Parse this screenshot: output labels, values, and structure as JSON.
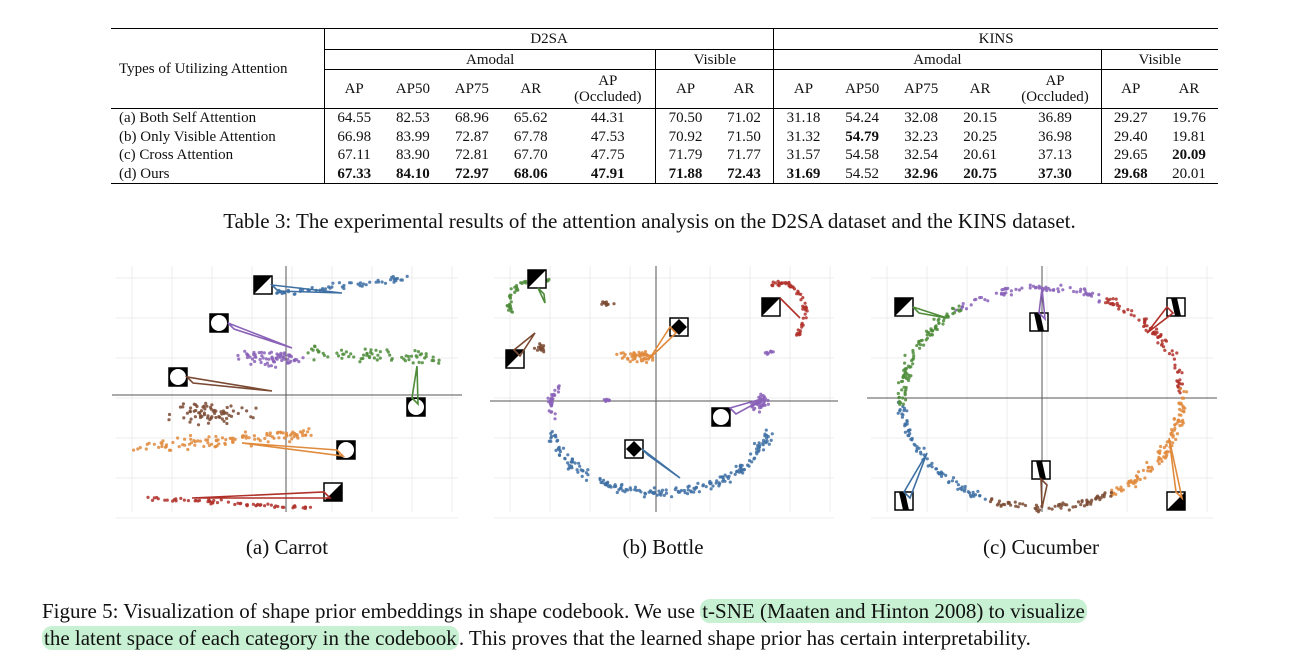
{
  "table": {
    "row_header": "Types of Utilizing Attention",
    "datasets": [
      "D2SA",
      "KINS"
    ],
    "groups": [
      "Amodal",
      "Visible",
      "Amodal",
      "Visible"
    ],
    "columns": [
      "AP",
      "AP50",
      "AP75",
      "AR",
      "AP",
      "(Occluded)",
      "AP",
      "AR",
      "AP",
      "AP50",
      "AP75",
      "AR",
      "AP",
      "(Occluded)",
      "AP",
      "AR"
    ],
    "rows": [
      {
        "label": "(a) Both Self Attention",
        "values": [
          "64.55",
          "82.53",
          "68.96",
          "65.62",
          "44.31",
          "70.50",
          "71.02",
          "31.18",
          "54.24",
          "32.08",
          "20.15",
          "36.89",
          "29.27",
          "19.76"
        ],
        "bold": []
      },
      {
        "label": "(b) Only Visible Attention",
        "values": [
          "66.98",
          "83.99",
          "72.87",
          "67.78",
          "47.53",
          "70.92",
          "71.50",
          "31.32",
          "54.79",
          "32.23",
          "20.25",
          "36.98",
          "29.40",
          "19.81"
        ],
        "bold": [
          8
        ]
      },
      {
        "label": "(c) Cross Attention",
        "values": [
          "67.11",
          "83.90",
          "72.81",
          "67.70",
          "47.75",
          "71.79",
          "71.77",
          "31.57",
          "54.58",
          "32.54",
          "20.61",
          "37.13",
          "29.65",
          "20.09"
        ],
        "bold": [
          13
        ]
      },
      {
        "label": "(d) Ours",
        "values": [
          "67.33",
          "84.10",
          "72.97",
          "68.06",
          "47.91",
          "71.88",
          "72.43",
          "31.69",
          "54.52",
          "32.96",
          "20.75",
          "37.30",
          "29.68",
          "20.01"
        ],
        "bold": [
          0,
          1,
          2,
          3,
          4,
          5,
          6,
          7,
          9,
          10,
          11,
          12
        ]
      }
    ]
  },
  "table_caption": "Table 3: The experimental results of the attention analysis on the D2SA dataset and the KINS dataset.",
  "subfigures": [
    {
      "caption": "(a) Carrot"
    },
    {
      "caption": "(b) Bottle"
    },
    {
      "caption": "(c) Cucumber"
    }
  ],
  "figure_caption": {
    "before": "Figure 5: Visualization of shape prior embeddings in shape codebook. We use ",
    "highlight1": "t-SNE (Maaten and Hinton 2008) to visualize",
    "highlight2": "the latent space of each category in the codebook",
    "after": ". This proves that the learned shape prior has certain interpretability."
  },
  "colors": {
    "blue": "#3d6fa3",
    "purple": "#8a62b8",
    "green": "#4e8c3a",
    "brown": "#7a4a33",
    "orange": "#e08a3c",
    "red": "#b0302a",
    "highlight": "#c7f1d2"
  }
}
